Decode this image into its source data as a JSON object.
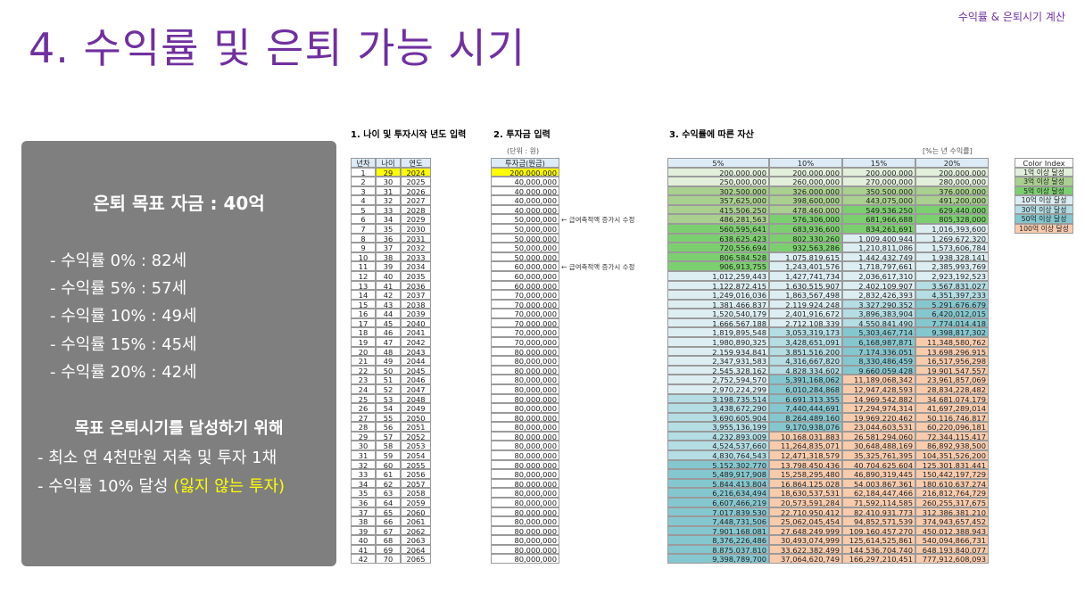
{
  "header": {
    "title": "4. 수익률 및 은퇴 가능 시기",
    "corner": "수익률 & 은퇴시기 계산"
  },
  "panel": {
    "goal": "은퇴 목표 자금 : 40억",
    "items": [
      "- 수익률    0% : 82세",
      "- 수익률   5% :  57세",
      "- 수익률 10% : 49세",
      "- 수익률 15% : 45세",
      "- 수익률 20% : 42세"
    ],
    "subtitle": "목표 은퇴시기를 달성하기 위해",
    "lines": [
      "- 최소 연 4천만원 저축 및 투자 1채",
      "- 수익률 10% 달성 "
    ],
    "highlight": "(잃지 않는 투자)"
  },
  "table": {
    "section1": "1. 나이 및 투자시작 년도 입력",
    "section2": "2. 투자금 입력",
    "section3": "3. 수익률에 따른 자산",
    "unit": "(단위 : 원)",
    "rate_note": "[%는 년 수익률]",
    "columns": [
      "년차",
      "나이",
      "연도",
      "투자금(원금)",
      "5%",
      "10%",
      "15%",
      "20%"
    ],
    "memos": {
      "6": "← 급여축적액 증가시 수정",
      "11": "← 급여축적액 증가시 수정"
    },
    "rows": [
      [
        "1",
        "29",
        "2024",
        "200,000,000",
        "200,000,000",
        "200,000,000",
        "200,000,000",
        "200,000,000"
      ],
      [
        "2",
        "30",
        "2025",
        "40,000,000",
        "250,000,000",
        "260,000,000",
        "270,000,000",
        "280,000,000"
      ],
      [
        "3",
        "31",
        "2026",
        "40,000,000",
        "302,500,000",
        "326,000,000",
        "350,500,000",
        "376,000,000"
      ],
      [
        "4",
        "32",
        "2027",
        "40,000,000",
        "357,625,000",
        "398,600,000",
        "443,075,000",
        "491,200,000"
      ],
      [
        "5",
        "33",
        "2028",
        "40,000,000",
        "415,506,250",
        "478,460,000",
        "549,536,250",
        "629,440,000"
      ],
      [
        "6",
        "34",
        "2029",
        "50,000,000",
        "486,281,563",
        "576,306,000",
        "681,966,688",
        "805,328,000"
      ],
      [
        "7",
        "35",
        "2030",
        "50,000,000",
        "560,595,641",
        "683,936,600",
        "834,261,691",
        "1,016,393,600"
      ],
      [
        "8",
        "36",
        "2031",
        "50,000,000",
        "638,625,423",
        "802,330,260",
        "1,009,400,944",
        "1,269,672,320"
      ],
      [
        "9",
        "37",
        "2032",
        "50,000,000",
        "720,556,694",
        "932,563,286",
        "1,210,811,086",
        "1,573,606,784"
      ],
      [
        "10",
        "38",
        "2033",
        "50,000,000",
        "806,584,528",
        "1,075,819,615",
        "1,442,432,749",
        "1,938,328,141"
      ],
      [
        "11",
        "39",
        "2034",
        "60,000,000",
        "906,913,755",
        "1,243,401,576",
        "1,718,797,661",
        "2,385,993,769"
      ],
      [
        "12",
        "40",
        "2035",
        "60,000,000",
        "1,012,259,443",
        "1,427,741,734",
        "2,036,617,310",
        "2,923,192,523"
      ],
      [
        "13",
        "41",
        "2036",
        "60,000,000",
        "1,122,872,415",
        "1,630,515,907",
        "2,402,109,907",
        "3,567,831,027"
      ],
      [
        "14",
        "42",
        "2037",
        "70,000,000",
        "1,249,016,036",
        "1,863,567,498",
        "2,832,426,393",
        "4,351,397,233"
      ],
      [
        "15",
        "43",
        "2038",
        "70,000,000",
        "1,381,466,837",
        "2,119,924,248",
        "3,327,290,352",
        "5,291,676,679"
      ],
      [
        "16",
        "44",
        "2039",
        "70,000,000",
        "1,520,540,179",
        "2,401,916,672",
        "3,896,383,904",
        "6,420,012,015"
      ],
      [
        "17",
        "45",
        "2040",
        "70,000,000",
        "1,666,567,188",
        "2,712,108,339",
        "4,550,841,490",
        "7,774,014,418"
      ],
      [
        "18",
        "46",
        "2041",
        "70,000,000",
        "1,819,895,548",
        "3,053,319,173",
        "5,303,467,714",
        "9,398,817,302"
      ],
      [
        "19",
        "47",
        "2042",
        "70,000,000",
        "1,980,890,325",
        "3,428,651,091",
        "6,168,987,871",
        "11,348,580,762"
      ],
      [
        "20",
        "48",
        "2043",
        "80,000,000",
        "2,159,934,841",
        "3,851,516,200",
        "7,174,336,051",
        "13,698,296,915"
      ],
      [
        "21",
        "49",
        "2044",
        "80,000,000",
        "2,347,931,583",
        "4,316,667,820",
        "8,330,486,459",
        "16,517,956,298"
      ],
      [
        "22",
        "50",
        "2045",
        "80,000,000",
        "2,545,328,162",
        "4,828,334,602",
        "9,660,059,428",
        "19,901,547,557"
      ],
      [
        "23",
        "51",
        "2046",
        "80,000,000",
        "2,752,594,570",
        "5,391,168,062",
        "11,189,068,342",
        "23,961,857,069"
      ],
      [
        "24",
        "52",
        "2047",
        "80,000,000",
        "2,970,224,299",
        "6,010,284,868",
        "12,947,428,593",
        "28,834,228,482"
      ],
      [
        "25",
        "53",
        "2048",
        "80,000,000",
        "3,198,735,514",
        "6,691,313,355",
        "14,969,542,882",
        "34,681,074,179"
      ],
      [
        "26",
        "54",
        "2049",
        "80,000,000",
        "3,438,672,290",
        "7,440,444,691",
        "17,294,974,314",
        "41,697,289,014"
      ],
      [
        "27",
        "55",
        "2050",
        "80,000,000",
        "3,690,605,904",
        "8,264,489,160",
        "19,969,220,462",
        "50,116,746,817"
      ],
      [
        "28",
        "56",
        "2051",
        "80,000,000",
        "3,955,136,199",
        "9,170,938,076",
        "23,044,603,531",
        "60,220,096,181"
      ],
      [
        "29",
        "57",
        "2052",
        "80,000,000",
        "4,232,893,009",
        "10,168,031,883",
        "26,581,294,060",
        "72,344,115,417"
      ],
      [
        "30",
        "58",
        "2053",
        "80,000,000",
        "4,524,537,660",
        "11,264,835,071",
        "30,648,488,169",
        "86,892,938,500"
      ],
      [
        "31",
        "59",
        "2054",
        "80,000,000",
        "4,830,764,543",
        "12,471,318,579",
        "35,325,761,395",
        "104,351,526,200"
      ],
      [
        "32",
        "60",
        "2055",
        "80,000,000",
        "5,152,302,770",
        "13,798,450,436",
        "40,704,625,604",
        "125,301,831,441"
      ],
      [
        "33",
        "61",
        "2056",
        "80,000,000",
        "5,489,917,908",
        "15,258,295,480",
        "46,890,319,445",
        "150,442,197,729"
      ],
      [
        "34",
        "62",
        "2057",
        "80,000,000",
        "5,844,413,804",
        "16,864,125,028",
        "54,003,867,361",
        "180,610,637,274"
      ],
      [
        "35",
        "63",
        "2058",
        "80,000,000",
        "6,216,634,494",
        "18,630,537,531",
        "62,184,447,466",
        "216,812,764,729"
      ],
      [
        "36",
        "64",
        "2059",
        "80,000,000",
        "6,607,466,219",
        "20,573,591,284",
        "71,592,114,585",
        "260,255,317,675"
      ],
      [
        "37",
        "65",
        "2060",
        "80,000,000",
        "7,017,839,530",
        "22,710,950,412",
        "82,410,931,773",
        "312,386,381,210"
      ],
      [
        "38",
        "66",
        "2061",
        "80,000,000",
        "7,448,731,506",
        "25,062,045,454",
        "94,852,571,539",
        "374,943,657,452"
      ],
      [
        "39",
        "67",
        "2062",
        "80,000,000",
        "7,901,168,081",
        "27,648,249,999",
        "109,160,457,270",
        "450,012,388,943"
      ],
      [
        "40",
        "68",
        "2063",
        "80,000,000",
        "8,376,226,486",
        "30,493,074,999",
        "125,614,525,861",
        "540,094,866,731"
      ],
      [
        "41",
        "69",
        "2064",
        "80,000,000",
        "8,875,037,810",
        "33,622,382,499",
        "144,536,704,740",
        "648,193,840,077"
      ],
      [
        "42",
        "70",
        "2065",
        "80,000,000",
        "9,398,789,700",
        "37,064,620,749",
        "166,297,210,451",
        "777,912,608,093"
      ]
    ]
  },
  "color_index": {
    "title": "Color Index",
    "entries": [
      {
        "label": "1억 이상 달성",
        "color": "#e2efda"
      },
      {
        "label": "3억 이상 달성",
        "color": "#a9d08e"
      },
      {
        "label": "5억 이상 달성",
        "color": "#7ccf6f"
      },
      {
        "label": "10억 이상 달성",
        "color": "#ddeef2"
      },
      {
        "label": "30억 이상 달성",
        "color": "#b4dde4"
      },
      {
        "label": "50억 이상 달성",
        "color": "#85c7cf"
      },
      {
        "label": "100억 이상 달성",
        "color": "#f8cbad"
      }
    ]
  }
}
